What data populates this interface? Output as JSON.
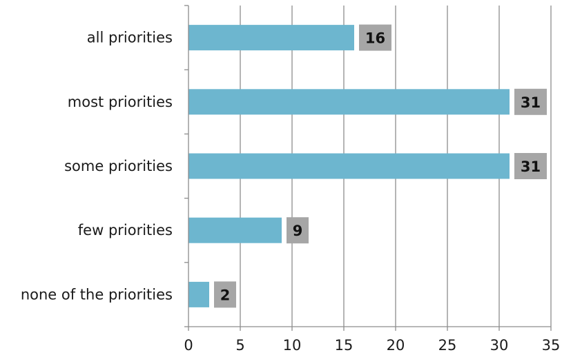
{
  "chart_data": {
    "type": "bar",
    "orientation": "horizontal",
    "title": "",
    "xlabel": "",
    "ylabel": "",
    "categories": [
      "all priorities",
      "most priorities",
      "some priorities",
      "few priorities",
      "none of the priorities"
    ],
    "values": [
      16,
      31,
      31,
      9,
      2
    ],
    "xlim": [
      0,
      35
    ],
    "xticks": [
      0,
      5,
      10,
      15,
      20,
      25,
      30,
      35
    ],
    "grid": "vertical",
    "legend": "none",
    "colors": {
      "bar": "#6db6cf",
      "data_label_bg": "#a6a6a6",
      "grid": "#8c8c8c",
      "axis": "#8c8c8c"
    }
  }
}
